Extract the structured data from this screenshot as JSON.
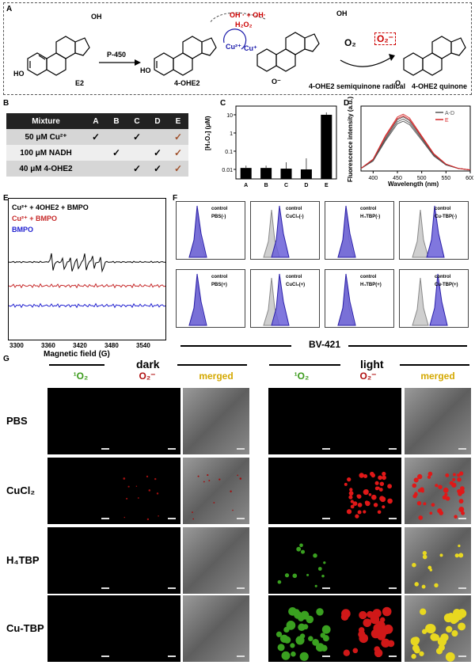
{
  "panelA": {
    "label": "A",
    "e2": "E2",
    "enzyme": "P-450",
    "ohe2": "4-OHE2",
    "radical": "4-OHE2 semiquinone radical",
    "quinone": "4-OHE2 quinone",
    "cu2": "Cu²⁺",
    "cu1": "Cu⁺",
    "oh_radicals": "OH · + OH·",
    "h2o2": "H₂O₂",
    "o2": "O₂",
    "o2minus": "O₂⁻",
    "oh": "OH",
    "ho": "HO",
    "o_minus": "O⁻",
    "o": "O"
  },
  "panelB": {
    "label": "B",
    "headers": [
      "Mixture",
      "A",
      "B",
      "C",
      "D",
      "E"
    ],
    "rows": [
      {
        "name": "50 μM Cu²⁺",
        "checks": [
          "✓",
          "",
          "✓",
          "",
          "✓"
        ]
      },
      {
        "name": "100 μM NADH",
        "checks": [
          "",
          "✓",
          "",
          "✓",
          "✓"
        ]
      },
      {
        "name": "40 μM 4-OHE2",
        "checks": [
          "",
          "",
          "✓",
          "✓",
          "✓"
        ]
      }
    ]
  },
  "panelC": {
    "label": "C",
    "ylabel": "[H₂O₂] (μM)",
    "yticks": [
      "10",
      "1",
      "0.1",
      "0.01"
    ],
    "chart_data": {
      "type": "bar",
      "categories": [
        "A",
        "B",
        "C",
        "D",
        "E"
      ],
      "values": [
        0.012,
        0.012,
        0.011,
        0.01,
        10
      ],
      "yscale": "log",
      "ylim": [
        0.003,
        30
      ],
      "ylabel": "[H₂O₂] (μM)"
    }
  },
  "panelD": {
    "label": "D",
    "ylabel": "Fluorescence intensity (a.u.)",
    "xlabel": "Wavelength (nm)",
    "xticks": [
      "400",
      "450",
      "500",
      "550",
      "600"
    ],
    "legend": [
      "A-D",
      "E"
    ],
    "colors": {
      "ad": "#555555",
      "e": "#d62728"
    },
    "chart_data": {
      "type": "line",
      "x": [
        375,
        400,
        425,
        450,
        462,
        475,
        500,
        525,
        550,
        575,
        600
      ],
      "series": [
        {
          "name": "A-D",
          "values": [
            0.05,
            0.2,
            0.6,
            0.95,
            1.0,
            0.93,
            0.62,
            0.3,
            0.12,
            0.05,
            0.02
          ]
        },
        {
          "name": "E",
          "values": [
            0.05,
            0.22,
            0.65,
            1.0,
            1.05,
            0.98,
            0.65,
            0.32,
            0.13,
            0.05,
            0.02
          ]
        }
      ],
      "xlim": [
        375,
        600
      ]
    }
  },
  "panelE": {
    "label": "E",
    "legend": [
      {
        "text": "Cu²⁺ + 4OHE2 + BMPO",
        "color": "#000000"
      },
      {
        "text": "Cu²⁺ + BMPO",
        "color": "#c62828"
      },
      {
        "text": "BMPO",
        "color": "#2020d0"
      }
    ],
    "xlabel": "Magnetic field (G)",
    "xticks": [
      "3300",
      "3360",
      "3420",
      "3480",
      "3540"
    ]
  },
  "panelF": {
    "label": "F",
    "xlabel": "BV-421",
    "control": "control",
    "samples": [
      "PBS(-)",
      "CuCl₂(-)",
      "H₄TBP(-)",
      "Cu-TBP(-)",
      "PBS(+)",
      "CuCl₂(+)",
      "H₄TBP(+)",
      "Cu-TBP(+)"
    ]
  },
  "panelG": {
    "label": "G",
    "dark": "dark",
    "light": "light",
    "col_1o2": "¹O₂",
    "col_o2": "O₂⁻",
    "col_merged": "merged",
    "rows": [
      "PBS",
      "CuCl₂",
      "H₄TBP",
      "Cu-TBP"
    ],
    "colors": {
      "green": "#3a9a1a",
      "red": "#b01010",
      "merged": "#d4a800"
    }
  }
}
